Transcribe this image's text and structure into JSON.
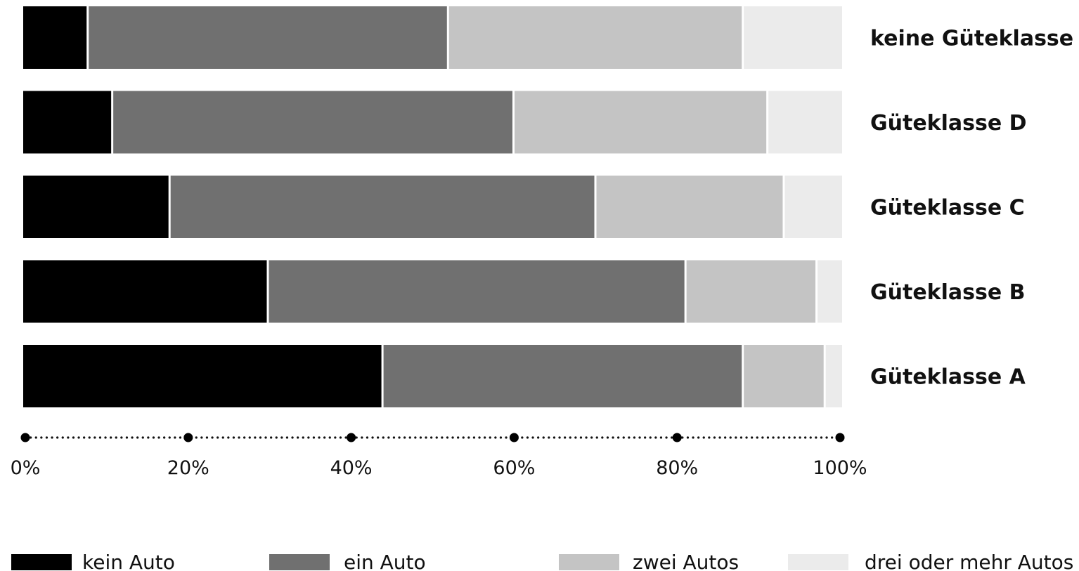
{
  "chart_data": {
    "type": "bar",
    "orientation": "horizontal",
    "stacked": true,
    "title": "",
    "xlabel": "",
    "ylabel": "",
    "xlim": [
      0,
      100
    ],
    "unit": "%",
    "grid": false,
    "legend_position": "bottom",
    "categories": [
      "keine Güteklasse",
      "Güteklasse D",
      "Güteklasse C",
      "Güteklasse B",
      "Güteklasse A"
    ],
    "x_ticks": [
      "0%",
      "20%",
      "40%",
      "60%",
      "80%",
      "100%"
    ],
    "series": [
      {
        "name": "kein Auto",
        "color": "#000000",
        "values": [
          8,
          11,
          18,
          30,
          44
        ]
      },
      {
        "name": "ein Auto",
        "color": "#707070",
        "values": [
          44,
          49,
          52,
          51,
          44
        ]
      },
      {
        "name": "zwei Autos",
        "color": "#c4c4c4",
        "values": [
          36,
          31,
          23,
          16,
          10
        ]
      },
      {
        "name": "drei oder mehr Autos",
        "color": "#ebebeb",
        "values": [
          12,
          9,
          7,
          3,
          2
        ]
      }
    ]
  }
}
